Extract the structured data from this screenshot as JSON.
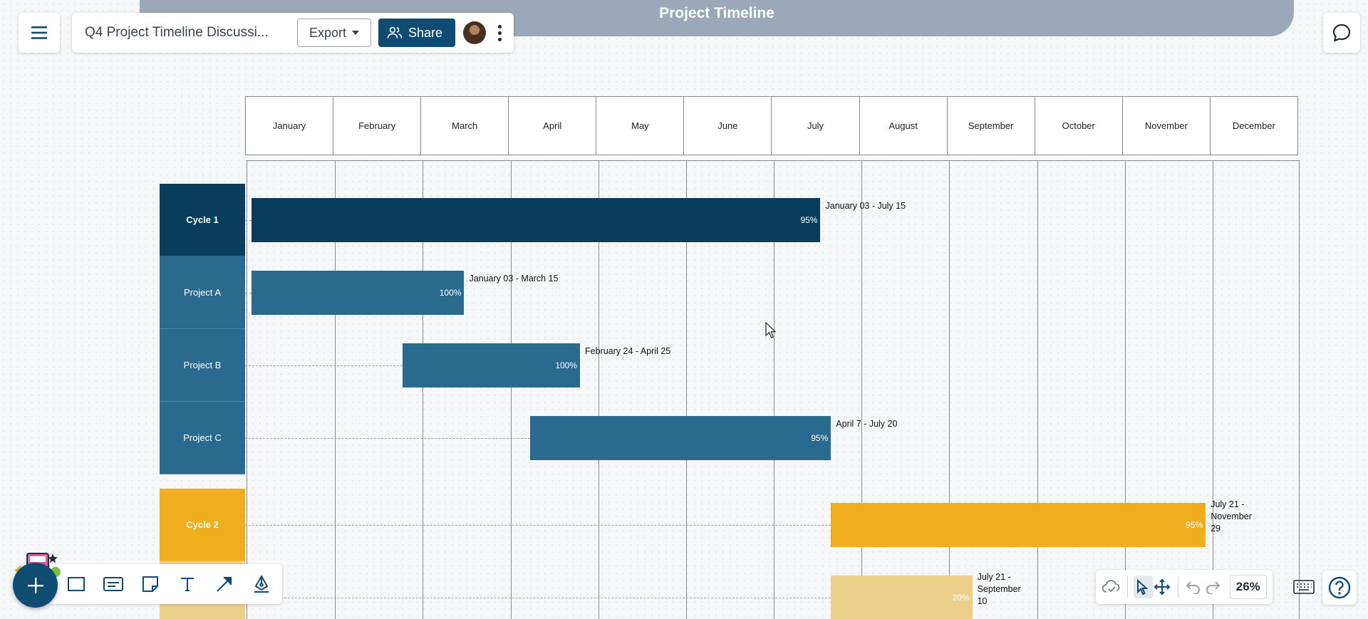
{
  "banner": {
    "title": "Project Timeline"
  },
  "topbar": {
    "doc_title": "Q4 Project Timeline Discussi...",
    "export_label": "Export",
    "share_label": "Share"
  },
  "timeline": {
    "months": [
      "January",
      "February",
      "March",
      "April",
      "May",
      "June",
      "July",
      "August",
      "September",
      "October",
      "November",
      "December"
    ],
    "rows": [
      {
        "label": "Cycle 1",
        "kind": "cycle",
        "color": "#093d5c",
        "start": 0.06,
        "end": 6.54,
        "percent": "95%",
        "range": [
          "January 03 - July 15"
        ]
      },
      {
        "label": "Project A",
        "kind": "project",
        "color": "#2a6a8f",
        "start": 0.06,
        "end": 2.48,
        "percent": "100%",
        "range": [
          "January 03 - March 15"
        ]
      },
      {
        "label": "Project B",
        "kind": "project",
        "color": "#2a6a8f",
        "start": 1.78,
        "end": 3.8,
        "percent": "100%",
        "range": [
          "February 24 - April 25"
        ]
      },
      {
        "label": "Project C",
        "kind": "project",
        "color": "#2a6a8f",
        "start": 3.23,
        "end": 6.66,
        "percent": "95%",
        "range": [
          "April 7 - July 20"
        ]
      },
      {
        "label": "Cycle 2",
        "kind": "cycle",
        "color": "#f0ae1e",
        "start": 6.66,
        "end": 10.93,
        "percent": "95%",
        "range": [
          "July 21 -",
          "November",
          "29"
        ]
      },
      {
        "label": "",
        "kind": "project",
        "color": "#ecd08a",
        "start": 6.66,
        "end": 8.27,
        "percent": "20%",
        "range": [
          "July 21 -",
          "September",
          "10"
        ]
      }
    ]
  },
  "zoom": "26%",
  "icons": {
    "menu": "hamburger-icon",
    "share": "people-icon",
    "comment": "speech-bubble-icon",
    "add": "plus-icon",
    "help": "question-mark-icon",
    "cloud": "cloud-check-icon"
  }
}
